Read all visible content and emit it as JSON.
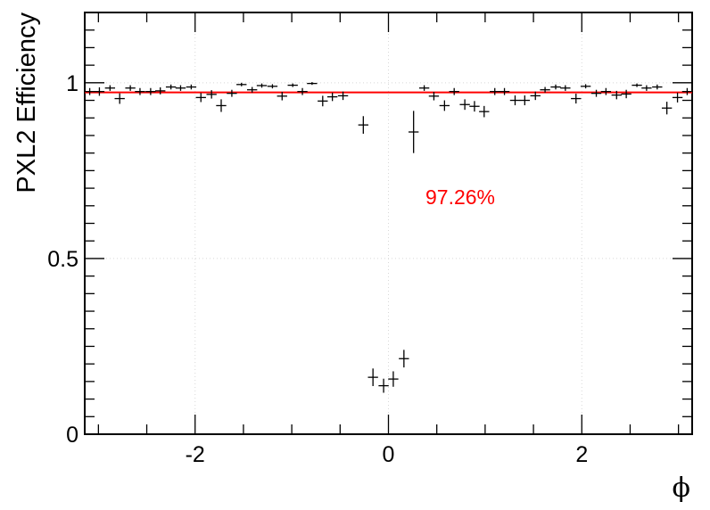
{
  "chart_data": {
    "type": "scatter",
    "title": "",
    "xlabel": "ϕ",
    "ylabel": "PXL2 Efficiency",
    "xlim": [
      -3.1416,
      3.1416
    ],
    "ylim": [
      0,
      1.2
    ],
    "x_tick_labels": [
      "-2",
      "0",
      "2"
    ],
    "y_tick_labels": [
      "0",
      "0.5",
      "1"
    ],
    "grid": "dotted",
    "annotation": "97.26%",
    "fit_line": {
      "value": 0.9726,
      "color": "#ff0000"
    },
    "marker_color": "#000000",
    "bin_half_width": 0.0524,
    "series": [
      {
        "points": [
          {
            "x": -3.09,
            "y": 0.975,
            "e": 0.01
          },
          {
            "x": -2.99,
            "y": 0.975,
            "e": 0.012
          },
          {
            "x": -2.88,
            "y": 0.985,
            "e": 0.008
          },
          {
            "x": -2.78,
            "y": 0.955,
            "e": 0.015
          },
          {
            "x": -2.67,
            "y": 0.985,
            "e": 0.008
          },
          {
            "x": -2.57,
            "y": 0.975,
            "e": 0.01
          },
          {
            "x": -2.46,
            "y": 0.975,
            "e": 0.01
          },
          {
            "x": -2.36,
            "y": 0.977,
            "e": 0.01
          },
          {
            "x": -2.25,
            "y": 0.988,
            "e": 0.007
          },
          {
            "x": -2.15,
            "y": 0.985,
            "e": 0.008
          },
          {
            "x": -2.04,
            "y": 0.988,
            "e": 0.007
          },
          {
            "x": -1.94,
            "y": 0.958,
            "e": 0.013
          },
          {
            "x": -1.83,
            "y": 0.967,
            "e": 0.012
          },
          {
            "x": -1.73,
            "y": 0.935,
            "e": 0.018
          },
          {
            "x": -1.62,
            "y": 0.97,
            "e": 0.01
          },
          {
            "x": -1.52,
            "y": 0.995,
            "e": 0.005
          },
          {
            "x": -1.41,
            "y": 0.98,
            "e": 0.008
          },
          {
            "x": -1.31,
            "y": 0.992,
            "e": 0.006
          },
          {
            "x": -1.2,
            "y": 0.99,
            "e": 0.006
          },
          {
            "x": -1.1,
            "y": 0.962,
            "e": 0.012
          },
          {
            "x": -0.99,
            "y": 0.993,
            "e": 0.005
          },
          {
            "x": -0.89,
            "y": 0.975,
            "e": 0.01
          },
          {
            "x": -0.79,
            "y": 0.998,
            "e": 0.004
          },
          {
            "x": -0.68,
            "y": 0.948,
            "e": 0.015
          },
          {
            "x": -0.58,
            "y": 0.96,
            "e": 0.012
          },
          {
            "x": -0.47,
            "y": 0.963,
            "e": 0.012
          },
          {
            "x": -0.26,
            "y": 0.88,
            "e": 0.025
          },
          {
            "x": -0.16,
            "y": 0.162,
            "e": 0.025
          },
          {
            "x": -0.05,
            "y": 0.138,
            "e": 0.02
          },
          {
            "x": 0.05,
            "y": 0.157,
            "e": 0.022
          },
          {
            "x": 0.16,
            "y": 0.215,
            "e": 0.025
          },
          {
            "x": 0.26,
            "y": 0.86,
            "e": 0.06
          },
          {
            "x": 0.37,
            "y": 0.985,
            "e": 0.008
          },
          {
            "x": 0.47,
            "y": 0.962,
            "e": 0.012
          },
          {
            "x": 0.58,
            "y": 0.935,
            "e": 0.015
          },
          {
            "x": 0.68,
            "y": 0.975,
            "e": 0.01
          },
          {
            "x": 0.79,
            "y": 0.938,
            "e": 0.015
          },
          {
            "x": 0.89,
            "y": 0.933,
            "e": 0.015
          },
          {
            "x": 0.99,
            "y": 0.918,
            "e": 0.016
          },
          {
            "x": 1.1,
            "y": 0.975,
            "e": 0.01
          },
          {
            "x": 1.2,
            "y": 0.975,
            "e": 0.01
          },
          {
            "x": 1.31,
            "y": 0.95,
            "e": 0.014
          },
          {
            "x": 1.41,
            "y": 0.95,
            "e": 0.014
          },
          {
            "x": 1.52,
            "y": 0.963,
            "e": 0.012
          },
          {
            "x": 1.62,
            "y": 0.98,
            "e": 0.008
          },
          {
            "x": 1.73,
            "y": 0.988,
            "e": 0.007
          },
          {
            "x": 1.83,
            "y": 0.985,
            "e": 0.008
          },
          {
            "x": 1.94,
            "y": 0.955,
            "e": 0.014
          },
          {
            "x": 2.04,
            "y": 0.99,
            "e": 0.006
          },
          {
            "x": 2.15,
            "y": 0.97,
            "e": 0.01
          },
          {
            "x": 2.25,
            "y": 0.975,
            "e": 0.01
          },
          {
            "x": 2.36,
            "y": 0.965,
            "e": 0.012
          },
          {
            "x": 2.46,
            "y": 0.968,
            "e": 0.012
          },
          {
            "x": 2.57,
            "y": 0.993,
            "e": 0.005
          },
          {
            "x": 2.67,
            "y": 0.985,
            "e": 0.008
          },
          {
            "x": 2.78,
            "y": 0.988,
            "e": 0.007
          },
          {
            "x": 2.88,
            "y": 0.928,
            "e": 0.018
          },
          {
            "x": 2.99,
            "y": 0.958,
            "e": 0.014
          },
          {
            "x": 3.09,
            "y": 0.975,
            "e": 0.01
          }
        ]
      }
    ]
  }
}
